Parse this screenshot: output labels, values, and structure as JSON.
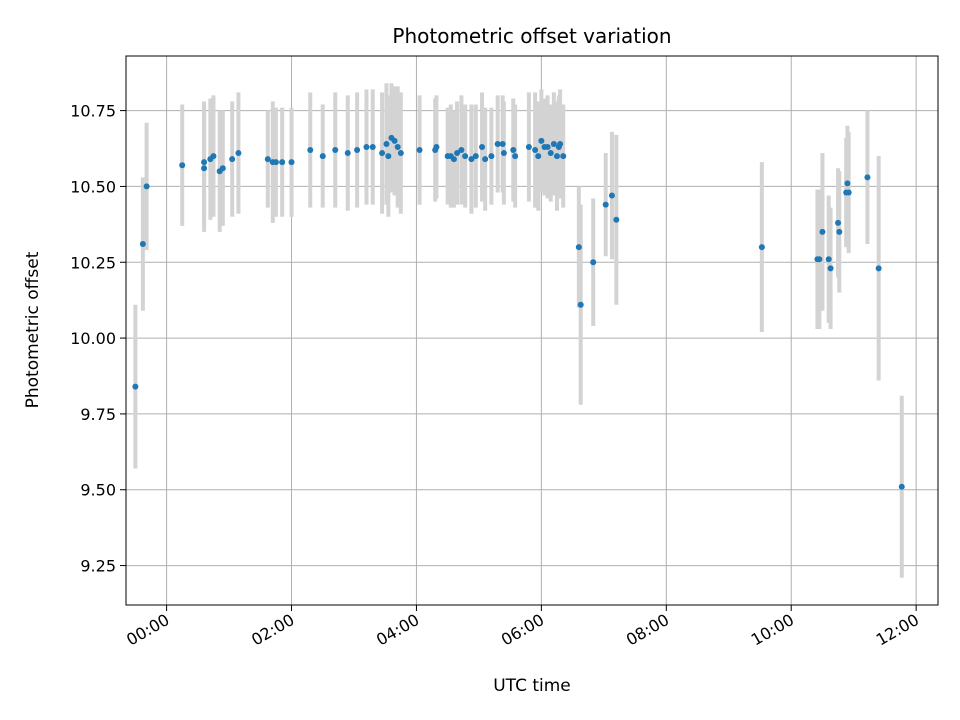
{
  "chart_data": {
    "type": "scatter",
    "title": "Photometric offset variation",
    "xlabel": "UTC time",
    "ylabel": "Photometric offset",
    "x_unit": "hours",
    "xlim": [
      -0.65,
      12.35
    ],
    "ylim": [
      9.12,
      10.93
    ],
    "grid": true,
    "x_ticks": [
      {
        "value": 0,
        "label": "00:00"
      },
      {
        "value": 2,
        "label": "02:00"
      },
      {
        "value": 4,
        "label": "04:00"
      },
      {
        "value": 6,
        "label": "06:00"
      },
      {
        "value": 8,
        "label": "08:00"
      },
      {
        "value": 10,
        "label": "10:00"
      },
      {
        "value": 12,
        "label": "12:00"
      }
    ],
    "y_ticks": [
      {
        "value": 9.25,
        "label": "9.25"
      },
      {
        "value": 9.5,
        "label": "9.50"
      },
      {
        "value": 9.75,
        "label": "9.75"
      },
      {
        "value": 10.0,
        "label": "10.00"
      },
      {
        "value": 10.25,
        "label": "10.25"
      },
      {
        "value": 10.5,
        "label": "10.50"
      },
      {
        "value": 10.75,
        "label": "10.75"
      }
    ],
    "marker_color": "#1f77b4",
    "errorbar_color": "#d3d3d3",
    "series": [
      {
        "name": "photometric offset",
        "x": [
          -0.5,
          -0.38,
          -0.32,
          0.25,
          0.6,
          0.6,
          0.7,
          0.75,
          0.85,
          0.9,
          1.05,
          1.15,
          1.62,
          1.7,
          1.75,
          1.85,
          2.0,
          2.3,
          2.5,
          2.7,
          2.9,
          3.05,
          3.2,
          3.3,
          3.45,
          3.52,
          3.55,
          3.6,
          3.65,
          3.7,
          3.75,
          4.05,
          4.3,
          4.32,
          4.5,
          4.55,
          4.6,
          4.65,
          4.72,
          4.78,
          4.88,
          4.95,
          5.05,
          5.1,
          5.2,
          5.3,
          5.38,
          5.4,
          5.55,
          5.58,
          5.8,
          5.9,
          5.95,
          6.0,
          6.05,
          6.1,
          6.15,
          6.2,
          6.25,
          6.28,
          6.3,
          6.35,
          6.6,
          6.63,
          6.83,
          7.03,
          7.13,
          7.2,
          9.53,
          10.42,
          10.45,
          10.5,
          10.6,
          10.63,
          10.75,
          10.77,
          10.88,
          10.9,
          10.92,
          11.22,
          11.4,
          11.77
        ],
        "y": [
          9.84,
          10.31,
          10.5,
          10.57,
          10.56,
          10.58,
          10.59,
          10.6,
          10.55,
          10.56,
          10.59,
          10.61,
          10.59,
          10.58,
          10.58,
          10.58,
          10.58,
          10.62,
          10.6,
          10.62,
          10.61,
          10.62,
          10.63,
          10.63,
          10.61,
          10.64,
          10.6,
          10.66,
          10.65,
          10.63,
          10.61,
          10.62,
          10.62,
          10.63,
          10.6,
          10.6,
          10.59,
          10.61,
          10.62,
          10.6,
          10.59,
          10.6,
          10.63,
          10.59,
          10.6,
          10.64,
          10.64,
          10.61,
          10.62,
          10.6,
          10.63,
          10.62,
          10.6,
          10.65,
          10.63,
          10.63,
          10.61,
          10.64,
          10.6,
          10.63,
          10.64,
          10.6,
          10.3,
          10.11,
          10.25,
          10.44,
          10.47,
          10.39,
          10.3,
          10.26,
          10.26,
          10.35,
          10.26,
          10.23,
          10.38,
          10.35,
          10.48,
          10.51,
          10.48,
          10.53,
          10.23,
          9.51
        ],
        "err": [
          0.27,
          0.22,
          0.21,
          0.2,
          0.21,
          0.2,
          0.2,
          0.2,
          0.2,
          0.19,
          0.19,
          0.2,
          0.16,
          0.2,
          0.18,
          0.18,
          0.18,
          0.19,
          0.17,
          0.19,
          0.19,
          0.19,
          0.19,
          0.19,
          0.2,
          0.2,
          0.2,
          0.18,
          0.18,
          0.2,
          0.2,
          0.18,
          0.17,
          0.17,
          0.16,
          0.17,
          0.16,
          0.17,
          0.18,
          0.17,
          0.18,
          0.17,
          0.18,
          0.17,
          0.16,
          0.16,
          0.16,
          0.17,
          0.17,
          0.17,
          0.18,
          0.19,
          0.18,
          0.17,
          0.16,
          0.17,
          0.16,
          0.17,
          0.18,
          0.17,
          0.18,
          0.17,
          0.2,
          0.33,
          0.21,
          0.17,
          0.21,
          0.28,
          0.28,
          0.23,
          0.23,
          0.26,
          0.21,
          0.2,
          0.18,
          0.2,
          0.18,
          0.19,
          0.2,
          0.22,
          0.37,
          0.3
        ]
      }
    ]
  }
}
